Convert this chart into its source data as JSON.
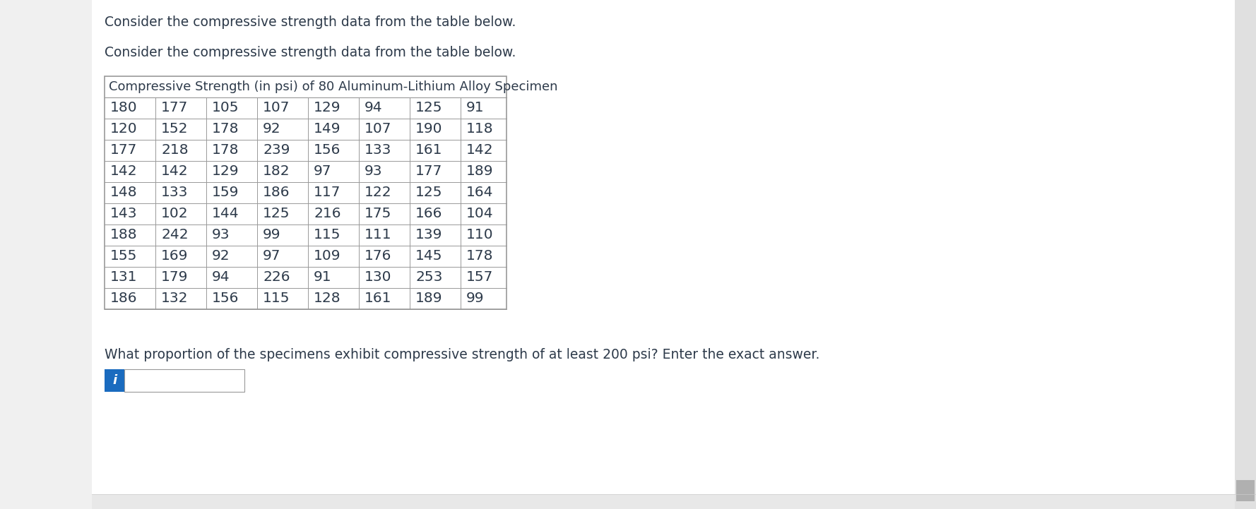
{
  "text_top1": "Consider the compressive strength data from the table below.",
  "text_top2": "Consider the compressive strength data from the table below.",
  "table_title": "Compressive Strength (in psi) of 80 Aluminum-Lithium Alloy Specimen",
  "table_data": [
    [
      180,
      177,
      105,
      107,
      129,
      94,
      125,
      91
    ],
    [
      120,
      152,
      178,
      92,
      149,
      107,
      190,
      118
    ],
    [
      177,
      218,
      178,
      239,
      156,
      133,
      161,
      142
    ],
    [
      142,
      142,
      129,
      182,
      97,
      93,
      177,
      189
    ],
    [
      148,
      133,
      159,
      186,
      117,
      122,
      125,
      164
    ],
    [
      143,
      102,
      144,
      125,
      216,
      175,
      166,
      104
    ],
    [
      188,
      242,
      93,
      99,
      115,
      111,
      139,
      110
    ],
    [
      155,
      169,
      92,
      97,
      109,
      176,
      145,
      178
    ],
    [
      131,
      179,
      94,
      226,
      91,
      130,
      253,
      157
    ],
    [
      186,
      132,
      156,
      115,
      128,
      161,
      189,
      99
    ]
  ],
  "question_text": "What proportion of the specimens exhibit compressive strength of at least 200 psi? Enter the exact answer.",
  "bg_color": "#f0f0f0",
  "content_bg": "#ffffff",
  "table_bg": "#ffffff",
  "text_color": "#2d3a4a",
  "border_color": "#999999",
  "input_box_color": "#1a6bbf",
  "input_bg": "#ffffff",
  "font_size_text": 13.5,
  "font_size_table_data": 14.5,
  "font_size_title": 13.0,
  "font_size_question": 13.5
}
